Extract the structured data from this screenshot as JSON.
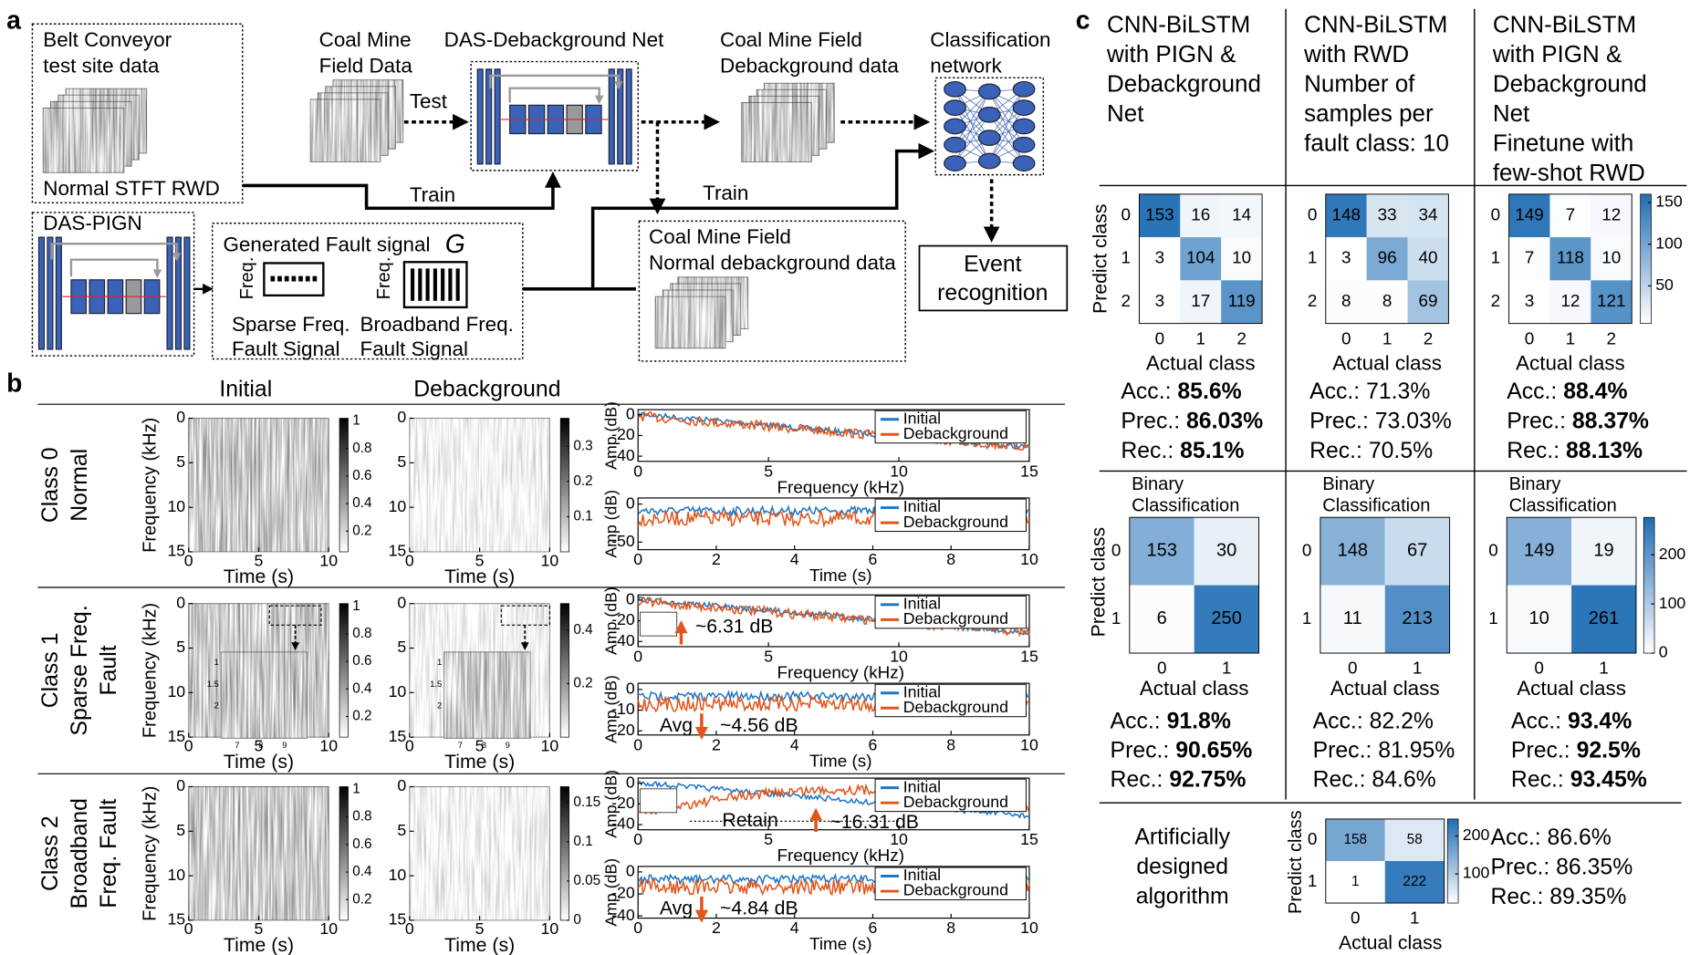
{
  "panel_a": {
    "label": "a",
    "belt": [
      "Belt Conveyor",
      "test site data"
    ],
    "belt_caption": "Normal STFT RWD",
    "pign_title": "DAS-PIGN",
    "generated_title": "Generated Fault signal",
    "generated_symbol": "G",
    "freq_axis": "Freq.",
    "sparse": [
      "Sparse Freq.",
      "Fault Signal"
    ],
    "broadband": [
      "Broadband Freq.",
      "Fault Signal"
    ],
    "coal_field": [
      "Coal Mine",
      "Field Data"
    ],
    "test": "Test",
    "debg_net": "DAS-Debackground Net",
    "debg_data": [
      "Coal Mine Field",
      "Debackground data"
    ],
    "classifier": [
      "Classification",
      "network"
    ],
    "event": [
      "Event",
      "recognition"
    ],
    "normal_debg": [
      "Coal Mine Field",
      "Normal debackground data"
    ],
    "train": [
      "Train",
      "Train"
    ]
  },
  "panel_b": {
    "label": "b",
    "headers": [
      "Initial",
      "Debackground"
    ],
    "freq_label": "Frequency (kHz)",
    "time_label": "Time (s)",
    "amp_label": "Amp (dB)",
    "spec_ylim": [
      0,
      15
    ],
    "spec_yticks": [
      0,
      5,
      10,
      15
    ],
    "spec_xlim": [
      0,
      10
    ],
    "spec_xticks": [
      0,
      5,
      10
    ],
    "legend": [
      "Initial",
      "Debackground"
    ],
    "legend_colors": [
      "#1f77c4",
      "#e0561c"
    ],
    "freq_xlim": [
      0,
      15
    ],
    "freq_xticks": [
      0,
      5,
      10,
      15
    ],
    "time_xlim": [
      0,
      10
    ],
    "time_xticks": [
      0,
      2,
      4,
      6,
      8,
      10
    ],
    "inset_yticks": [
      1,
      1.5,
      2
    ],
    "inset_xticks": [
      7,
      8,
      9
    ],
    "rows": [
      {
        "class": [
          "Class 0",
          "Normal"
        ],
        "cbar_initial_lim": [
          0.05,
          1.02
        ],
        "cbar_initial": [
          1,
          0.8,
          0.6,
          0.4,
          0.2
        ],
        "cbar_debg_lim": [
          0,
          0.38
        ],
        "cbar_debg": [
          0.3,
          0.2,
          0.1
        ],
        "freq_ylim": [
          -45,
          5
        ],
        "freq_yticks": [
          0,
          -20,
          -40
        ],
        "time_ylim": [
          -60,
          8
        ],
        "time_yticks": [
          0,
          -50
        ]
      },
      {
        "class": [
          "Class 1",
          "Sparse Freq.",
          "Fault"
        ],
        "cbar_initial_lim": [
          0.05,
          1.02
        ],
        "cbar_initial": [
          1,
          0.8,
          0.6,
          0.4,
          0.2
        ],
        "cbar_debg_lim": [
          0,
          0.5
        ],
        "cbar_debg": [
          0.4,
          0.2
        ],
        "freq_ylim": [
          -45,
          5
        ],
        "freq_yticks": [
          0,
          -20,
          -40
        ],
        "time_ylim": [
          -22,
          3
        ],
        "time_yticks": [
          0,
          -10,
          -20
        ],
        "freq_note": "~6.31 dB",
        "time_note": [
          "Avg",
          "~4.56 dB"
        ]
      },
      {
        "class": [
          "Class 2",
          "Broadband",
          "Freq. Fault"
        ],
        "cbar_initial_lim": [
          0.05,
          1.02
        ],
        "cbar_initial": [
          1,
          0.8,
          0.6,
          0.4,
          0.2
        ],
        "cbar_debg_lim": [
          0,
          0.17
        ],
        "cbar_debg": [
          0.15,
          0.1,
          0.05,
          0
        ],
        "freq_ylim": [
          -45,
          5
        ],
        "freq_yticks": [
          0,
          -20,
          -40
        ],
        "time_ylim": [
          -42,
          5
        ],
        "time_yticks": [
          0,
          -20,
          -40
        ],
        "retain": "Retain",
        "freq_note": "~16.31 dB",
        "time_note": [
          "Avg",
          "~4.84 dB"
        ]
      }
    ]
  },
  "panel_c": {
    "label": "c",
    "predict_label": "Predict class",
    "actual_label": "Actual class",
    "binary_title": [
      "Binary",
      "Classification"
    ],
    "multi_ticks": [
      0,
      1,
      2
    ],
    "binary_ticks": [
      0,
      1
    ],
    "cmap": [
      "#ffffff",
      "#1f6db4"
    ],
    "multi_cbar": {
      "clim": [
        5,
        160
      ],
      "ticks": [
        150,
        100,
        50
      ]
    },
    "binary_cbar": {
      "clim": [
        0,
        276
      ],
      "ticks": [
        200,
        100,
        0
      ]
    },
    "columns": [
      {
        "header": [
          "CNN-BiLSTM",
          "with PIGN &",
          "Debackground",
          "Net"
        ],
        "multi": {
          "matrix": [
            [
              153,
              16,
              14
            ],
            [
              3,
              104,
              10
            ],
            [
              3,
              17,
              119
            ]
          ],
          "metrics": [
            {
              "label": "Acc.:",
              "value": "85.6%",
              "bold": true
            },
            {
              "label": "Prec.:",
              "value": "86.03%",
              "bold": true
            },
            {
              "label": "Rec.:",
              "value": "85.1%",
              "bold": true
            }
          ]
        },
        "binary": {
          "matrix": [
            [
              153,
              30
            ],
            [
              6,
              250
            ]
          ],
          "metrics": [
            {
              "label": "Acc.:",
              "value": "91.8%",
              "bold": true
            },
            {
              "label": "Prec.:",
              "value": "90.65%",
              "bold": true
            },
            {
              "label": "Rec.:",
              "value": "92.75%",
              "bold": true
            }
          ]
        }
      },
      {
        "header": [
          "CNN-BiLSTM",
          "with RWD",
          "Number of",
          "samples per",
          "fault class: 10"
        ],
        "multi": {
          "matrix": [
            [
              148,
              33,
              34
            ],
            [
              3,
              96,
              40
            ],
            [
              8,
              8,
              69
            ]
          ],
          "metrics": [
            {
              "label": "Acc.:",
              "value": "71.3%",
              "bold": false
            },
            {
              "label": "Prec.:",
              "value": "73.03%",
              "bold": false
            },
            {
              "label": "Rec.:",
              "value": "70.5%",
              "bold": false
            }
          ]
        },
        "binary": {
          "matrix": [
            [
              148,
              67
            ],
            [
              11,
              213
            ]
          ],
          "metrics": [
            {
              "label": "Acc.:",
              "value": "82.2%",
              "bold": false
            },
            {
              "label": "Prec.:",
              "value": "81.95%",
              "bold": false
            },
            {
              "label": "Rec.:",
              "value": "84.6%",
              "bold": false
            }
          ]
        }
      },
      {
        "header": [
          "CNN-BiLSTM",
          "with PIGN &",
          "Debackground",
          "Net",
          "Finetune with",
          "few-shot RWD"
        ],
        "multi": {
          "matrix": [
            [
              149,
              7,
              12
            ],
            [
              7,
              118,
              10
            ],
            [
              3,
              12,
              121
            ]
          ],
          "metrics": [
            {
              "label": "Acc.:",
              "value": "88.4%",
              "bold": true
            },
            {
              "label": "Prec.:",
              "value": "88.37%",
              "bold": true
            },
            {
              "label": "Rec.:",
              "value": "88.13%",
              "bold": true
            }
          ]
        },
        "binary": {
          "matrix": [
            [
              149,
              19
            ],
            [
              10,
              261
            ]
          ],
          "metrics": [
            {
              "label": "Acc.:",
              "value": "93.4%",
              "bold": true
            },
            {
              "label": "Prec.:",
              "value": "92.5%",
              "bold": true
            },
            {
              "label": "Rec.:",
              "value": "93.45%",
              "bold": true
            }
          ]
        }
      }
    ],
    "baseline": {
      "name": [
        "Artificially",
        "designed",
        "algorithm"
      ],
      "matrix": [
        [
          158,
          58
        ],
        [
          1,
          222
        ]
      ],
      "clim": [
        23,
        245
      ],
      "cbar_ticks": [
        200,
        100
      ],
      "metrics": [
        {
          "label": "Acc.:",
          "value": "86.6%",
          "bold": false
        },
        {
          "label": "Prec.:",
          "value": "86.35%",
          "bold": false
        },
        {
          "label": "Rec.:",
          "value": "89.35%",
          "bold": false
        }
      ]
    }
  }
}
